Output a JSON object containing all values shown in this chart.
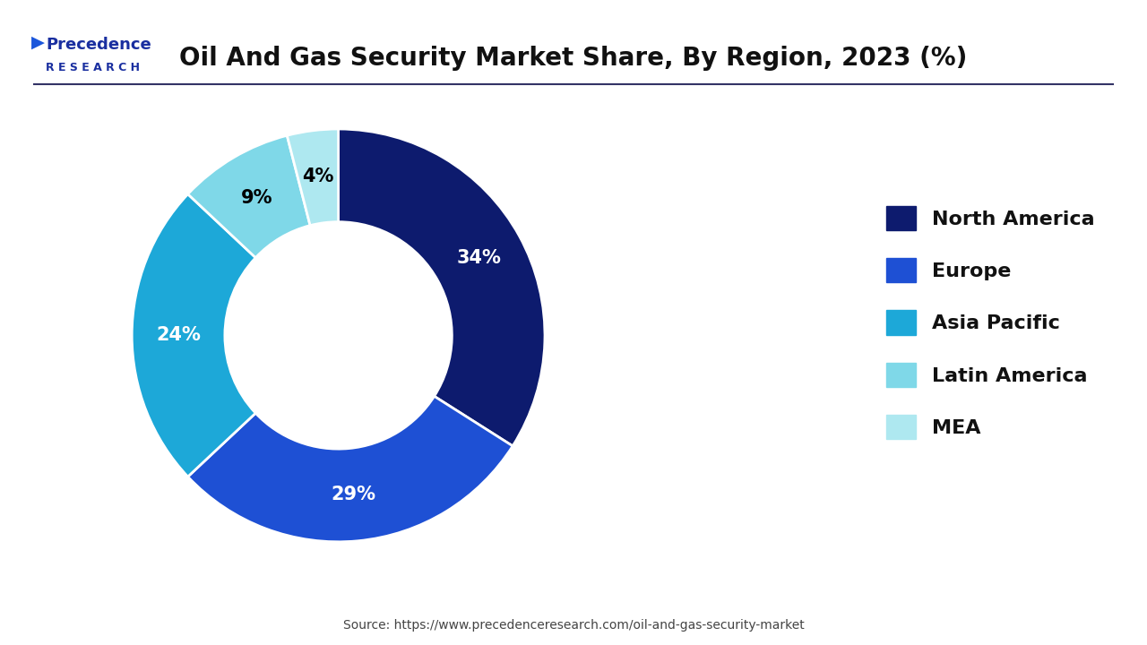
{
  "title": "Oil And Gas Security Market Share, By Region, 2023 (%)",
  "slices": [
    {
      "label": "North America",
      "value": 34,
      "color": "#0d1b6e"
    },
    {
      "label": "Europe",
      "value": 29,
      "color": "#1e50d4"
    },
    {
      "label": "Asia Pacific",
      "value": 24,
      "color": "#1da8d8"
    },
    {
      "label": "Latin America",
      "value": 9,
      "color": "#7fd8e8"
    },
    {
      "label": "MEA",
      "value": 4,
      "color": "#aee8f0"
    }
  ],
  "pct_colors": [
    "white",
    "white",
    "white",
    "black",
    "black"
  ],
  "title_fontsize": 20,
  "label_fontsize": 15,
  "legend_fontsize": 16,
  "source_text": "Source: https://www.precedenceresearch.com/oil-and-gas-security-market",
  "source_fontsize": 10,
  "bg_color": "#ffffff",
  "title_color": "#111111",
  "logo_text_top": "Precedence",
  "logo_text_bottom": "R E S E A R C H"
}
